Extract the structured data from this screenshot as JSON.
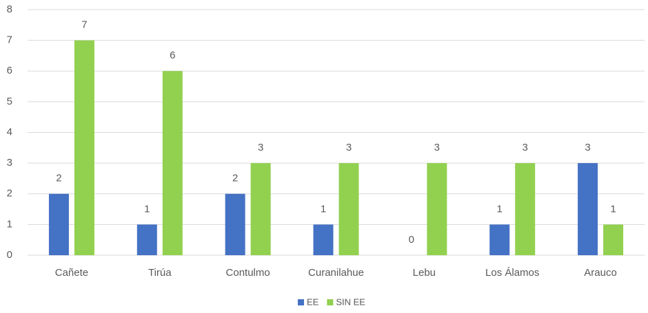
{
  "chart_data": {
    "type": "bar",
    "categories": [
      "Cañete",
      "Tirúa",
      "Contulmo",
      "Curanilahue",
      "Lebu",
      "Los Álamos",
      "Arauco"
    ],
    "series": [
      {
        "name": "EE",
        "color": "#4472c4",
        "values": [
          2,
          1,
          2,
          1,
          0,
          1,
          3
        ]
      },
      {
        "name": "SIN EE",
        "color": "#92d050",
        "values": [
          7,
          6,
          3,
          3,
          3,
          3,
          1
        ]
      }
    ],
    "ylim": [
      0,
      8
    ],
    "yticks": [
      0,
      1,
      2,
      3,
      4,
      5,
      6,
      7,
      8
    ],
    "grid": true,
    "legend": "bottom"
  }
}
